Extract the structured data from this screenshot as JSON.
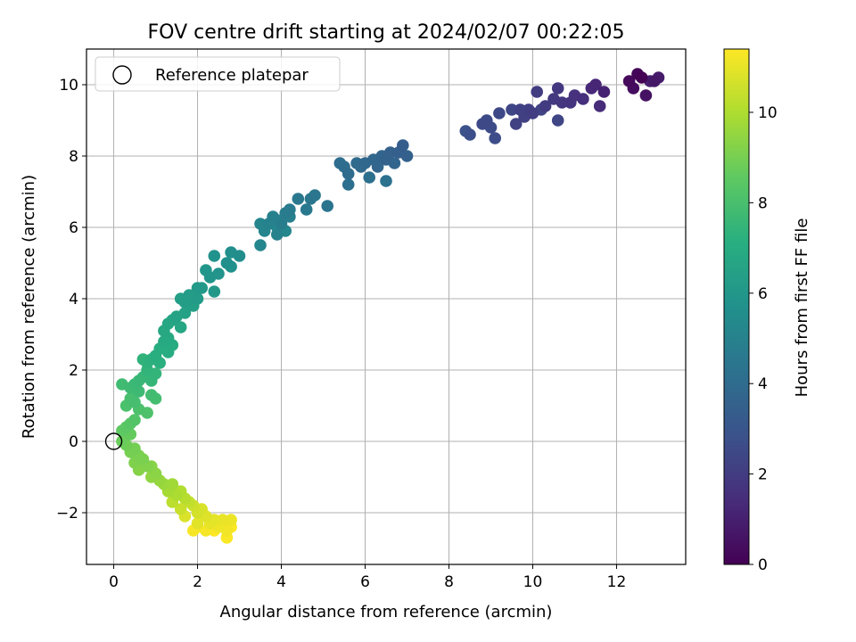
{
  "chart_data": {
    "type": "scatter",
    "title": "FOV centre drift starting at 2024/02/07 00:22:05",
    "xlabel": "Angular distance from reference (arcmin)",
    "ylabel": "Rotation from reference (arcmin)",
    "xlim": [
      -0.65,
      13.65
    ],
    "ylim": [
      -3.45,
      11.0
    ],
    "xticks": [
      0,
      2,
      4,
      6,
      8,
      10,
      12
    ],
    "yticks": [
      -2,
      0,
      2,
      4,
      6,
      8,
      10
    ],
    "xtick_labels": [
      "0",
      "2",
      "4",
      "6",
      "8",
      "10",
      "12"
    ],
    "ytick_labels": [
      "−2",
      "0",
      "2",
      "4",
      "6",
      "8",
      "10"
    ],
    "grid": true,
    "legend": {
      "position": "top-left",
      "entries": [
        "Reference platepar"
      ]
    },
    "reference_point": {
      "x": 0,
      "y": 0,
      "label": "Reference platepar"
    },
    "colorbar": {
      "label": "Hours from first FF file",
      "colormap": "viridis",
      "range": [
        0,
        11.4
      ],
      "ticks": [
        0,
        2,
        4,
        6,
        8,
        10
      ],
      "tick_labels": [
        "0",
        "2",
        "4",
        "6",
        "8",
        "10"
      ]
    },
    "series": [
      {
        "points": [
          [
            12.6,
            10.2,
            0.05
          ],
          [
            12.5,
            10.3,
            0.15
          ],
          [
            12.3,
            10.1,
            0.3
          ],
          [
            12.4,
            9.9,
            0.4
          ],
          [
            12.7,
            9.7,
            0.55
          ],
          [
            12.9,
            10.1,
            0.7
          ],
          [
            13.0,
            10.2,
            0.85
          ],
          [
            12.8,
            10.1,
            1.0
          ],
          [
            11.7,
            9.8,
            1.1
          ],
          [
            11.5,
            10.0,
            1.2
          ],
          [
            11.4,
            9.9,
            1.3
          ],
          [
            11.6,
            9.4,
            1.4
          ],
          [
            11.2,
            9.6,
            1.5
          ],
          [
            11.0,
            9.7,
            1.6
          ],
          [
            10.9,
            9.5,
            1.7
          ],
          [
            10.7,
            9.5,
            1.8
          ],
          [
            10.6,
            9.9,
            1.85
          ],
          [
            10.5,
            9.6,
            1.9
          ],
          [
            10.3,
            9.4,
            1.95
          ],
          [
            10.1,
            9.8,
            2.0
          ],
          [
            10.0,
            9.2,
            2.05
          ],
          [
            9.9,
            9.3,
            2.1
          ],
          [
            9.8,
            9.1,
            2.15
          ],
          [
            9.7,
            9.3,
            2.2
          ],
          [
            9.6,
            8.9,
            2.25
          ],
          [
            10.2,
            9.3,
            2.3
          ],
          [
            10.6,
            9.0,
            2.35
          ],
          [
            9.5,
            9.3,
            2.4
          ],
          [
            9.2,
            9.2,
            2.45
          ],
          [
            8.9,
            9.0,
            2.5
          ],
          [
            8.8,
            8.9,
            2.55
          ],
          [
            9.0,
            8.8,
            2.6
          ],
          [
            9.1,
            8.5,
            2.65
          ],
          [
            8.5,
            8.6,
            2.75
          ],
          [
            8.4,
            8.7,
            2.85
          ],
          [
            6.9,
            8.3,
            3.4
          ],
          [
            6.8,
            8.1,
            3.45
          ],
          [
            7.0,
            8.0,
            3.5
          ],
          [
            6.6,
            8.1,
            3.55
          ],
          [
            6.5,
            7.9,
            3.6
          ],
          [
            6.4,
            8.0,
            3.65
          ],
          [
            6.7,
            7.8,
            3.7
          ],
          [
            6.3,
            7.7,
            3.75
          ],
          [
            6.2,
            7.9,
            3.8
          ],
          [
            6.0,
            7.8,
            3.85
          ],
          [
            5.9,
            7.7,
            3.9
          ],
          [
            5.8,
            7.8,
            3.95
          ],
          [
            5.6,
            7.5,
            4.0
          ],
          [
            5.5,
            7.7,
            4.05
          ],
          [
            5.4,
            7.8,
            4.1
          ],
          [
            5.6,
            7.2,
            4.15
          ],
          [
            6.1,
            7.4,
            4.2
          ],
          [
            6.5,
            7.3,
            4.25
          ],
          [
            5.1,
            6.6,
            4.35
          ],
          [
            4.8,
            6.9,
            4.45
          ],
          [
            4.7,
            6.8,
            4.5
          ],
          [
            4.4,
            6.8,
            4.55
          ],
          [
            4.6,
            6.5,
            4.6
          ],
          [
            4.2,
            6.5,
            4.7
          ],
          [
            4.1,
            6.4,
            4.75
          ],
          [
            4.0,
            6.1,
            4.8
          ],
          [
            4.2,
            6.3,
            4.85
          ],
          [
            3.9,
            6.2,
            4.9
          ],
          [
            3.8,
            6.3,
            4.95
          ],
          [
            3.9,
            5.8,
            5.0
          ],
          [
            3.7,
            6.1,
            5.05
          ],
          [
            3.6,
            5.9,
            5.1
          ],
          [
            3.5,
            6.1,
            5.15
          ],
          [
            3.5,
            5.5,
            5.2
          ],
          [
            4.1,
            5.9,
            5.25
          ],
          [
            3.9,
            6.0,
            5.3
          ],
          [
            3.0,
            5.2,
            5.55
          ],
          [
            2.8,
            5.3,
            5.6
          ],
          [
            2.7,
            5.0,
            5.65
          ],
          [
            2.8,
            4.9,
            5.7
          ],
          [
            2.4,
            5.2,
            5.75
          ],
          [
            2.5,
            4.7,
            5.85
          ],
          [
            2.3,
            4.6,
            5.9
          ],
          [
            2.2,
            4.8,
            5.95
          ],
          [
            2.4,
            4.2,
            6.05
          ],
          [
            2.1,
            4.3,
            6.1
          ],
          [
            2.0,
            4.3,
            6.15
          ],
          [
            2.0,
            4.0,
            6.2
          ],
          [
            1.8,
            4.1,
            6.25
          ],
          [
            1.7,
            3.9,
            6.3
          ],
          [
            1.6,
            4.0,
            6.35
          ],
          [
            1.9,
            3.8,
            6.4
          ],
          [
            1.7,
            3.6,
            6.5
          ],
          [
            1.5,
            3.5,
            6.6
          ],
          [
            1.4,
            3.4,
            6.7
          ],
          [
            1.6,
            3.2,
            6.75
          ],
          [
            1.3,
            3.3,
            6.8
          ],
          [
            1.2,
            3.1,
            6.85
          ],
          [
            1.3,
            2.9,
            6.9
          ],
          [
            1.2,
            2.8,
            6.95
          ],
          [
            1.4,
            2.7,
            7.0
          ],
          [
            1.3,
            2.5,
            7.05
          ],
          [
            1.1,
            2.6,
            7.1
          ],
          [
            1.0,
            2.4,
            7.15
          ],
          [
            1.1,
            2.2,
            7.2
          ],
          [
            0.9,
            2.3,
            7.25
          ],
          [
            0.8,
            2.2,
            7.3
          ],
          [
            0.7,
            2.3,
            7.35
          ],
          [
            0.8,
            2.0,
            7.4
          ],
          [
            1.0,
            1.9,
            7.45
          ],
          [
            0.9,
            1.7,
            7.5
          ],
          [
            0.7,
            1.8,
            7.55
          ],
          [
            0.6,
            1.7,
            7.6
          ],
          [
            0.5,
            1.6,
            7.65
          ],
          [
            0.6,
            1.4,
            7.7
          ],
          [
            0.4,
            1.5,
            7.75
          ],
          [
            0.2,
            1.6,
            7.8
          ],
          [
            0.9,
            1.3,
            7.85
          ],
          [
            1.0,
            1.2,
            7.9
          ],
          [
            0.5,
            1.1,
            7.95
          ],
          [
            0.4,
            1.2,
            8.0
          ],
          [
            0.3,
            1.0,
            8.05
          ],
          [
            0.6,
            0.9,
            8.1
          ],
          [
            0.8,
            0.8,
            8.15
          ],
          [
            0.5,
            0.6,
            8.25
          ],
          [
            0.4,
            0.5,
            8.35
          ],
          [
            0.3,
            0.4,
            8.45
          ],
          [
            0.2,
            0.3,
            8.55
          ],
          [
            0.4,
            0.2,
            8.65
          ],
          [
            0.2,
            0.0,
            8.75
          ],
          [
            0.3,
            -0.1,
            8.85
          ],
          [
            0.5,
            -0.2,
            8.95
          ],
          [
            0.4,
            -0.3,
            9.0
          ],
          [
            0.6,
            -0.4,
            9.05
          ],
          [
            0.7,
            -0.5,
            9.1
          ],
          [
            0.5,
            -0.6,
            9.15
          ],
          [
            0.8,
            -0.7,
            9.2
          ],
          [
            0.6,
            -0.8,
            9.25
          ],
          [
            0.9,
            -0.7,
            9.3
          ],
          [
            1.0,
            -0.9,
            9.35
          ],
          [
            0.9,
            -1.0,
            9.45
          ],
          [
            1.1,
            -1.1,
            9.55
          ],
          [
            1.2,
            -1.2,
            9.65
          ],
          [
            1.4,
            -1.2,
            9.75
          ],
          [
            1.3,
            -1.4,
            9.85
          ],
          [
            1.5,
            -1.5,
            9.95
          ],
          [
            1.6,
            -1.4,
            10.05
          ],
          [
            1.7,
            -1.6,
            10.15
          ],
          [
            1.4,
            -1.7,
            10.25
          ],
          [
            1.8,
            -1.7,
            10.35
          ],
          [
            1.6,
            -1.9,
            10.45
          ],
          [
            1.9,
            -1.8,
            10.55
          ],
          [
            2.0,
            -2.0,
            10.65
          ],
          [
            2.1,
            -1.9,
            10.75
          ],
          [
            1.7,
            -2.1,
            10.8
          ],
          [
            2.2,
            -2.1,
            10.85
          ],
          [
            2.0,
            -2.3,
            10.9
          ],
          [
            2.4,
            -2.2,
            10.95
          ],
          [
            2.3,
            -2.3,
            11.0
          ],
          [
            2.6,
            -2.2,
            11.05
          ],
          [
            2.8,
            -2.2,
            11.1
          ],
          [
            2.5,
            -2.4,
            11.15
          ],
          [
            2.7,
            -2.5,
            11.2
          ],
          [
            2.2,
            -2.5,
            11.25
          ],
          [
            2.0,
            -2.4,
            11.3
          ],
          [
            1.9,
            -2.5,
            11.3
          ],
          [
            2.7,
            -2.7,
            11.35
          ],
          [
            2.8,
            -2.4,
            11.35
          ],
          [
            2.4,
            -2.5,
            11.4
          ]
        ]
      }
    ]
  }
}
